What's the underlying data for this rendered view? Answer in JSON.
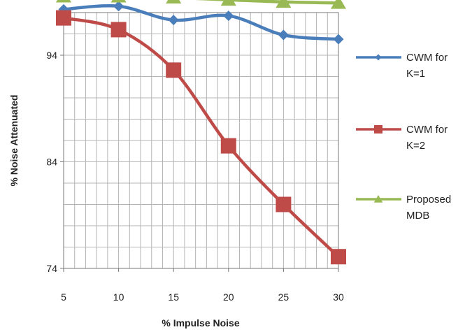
{
  "chart_data": {
    "type": "line",
    "title": "",
    "xlabel": "% Impulse Noise",
    "ylabel": "% Noise Attenuated",
    "x": [
      5,
      10,
      15,
      20,
      25,
      30
    ],
    "xlim": [
      5,
      30
    ],
    "ylim": [
      74,
      98
    ],
    "y_ticks": [
      74,
      84,
      94
    ],
    "x_ticks": [
      5,
      10,
      15,
      20,
      25,
      30
    ],
    "grid": true,
    "legend_position": "right",
    "series": [
      {
        "name": "CWM for K=1",
        "values": [
          98.3,
          98.6,
          97.3,
          97.7,
          95.9,
          95.5
        ],
        "color": "#4a7ebb",
        "marker": "diamond"
      },
      {
        "name": "CWM for K=2",
        "values": [
          97.5,
          96.4,
          92.6,
          85.5,
          80.0,
          75.1
        ],
        "color": "#be4b48",
        "marker": "square"
      },
      {
        "name": "Proposed MDB",
        "values": [
          99.5,
          99.5,
          99.4,
          99.2,
          99.0,
          98.9
        ],
        "color": "#98b954",
        "marker": "triangle"
      }
    ]
  }
}
